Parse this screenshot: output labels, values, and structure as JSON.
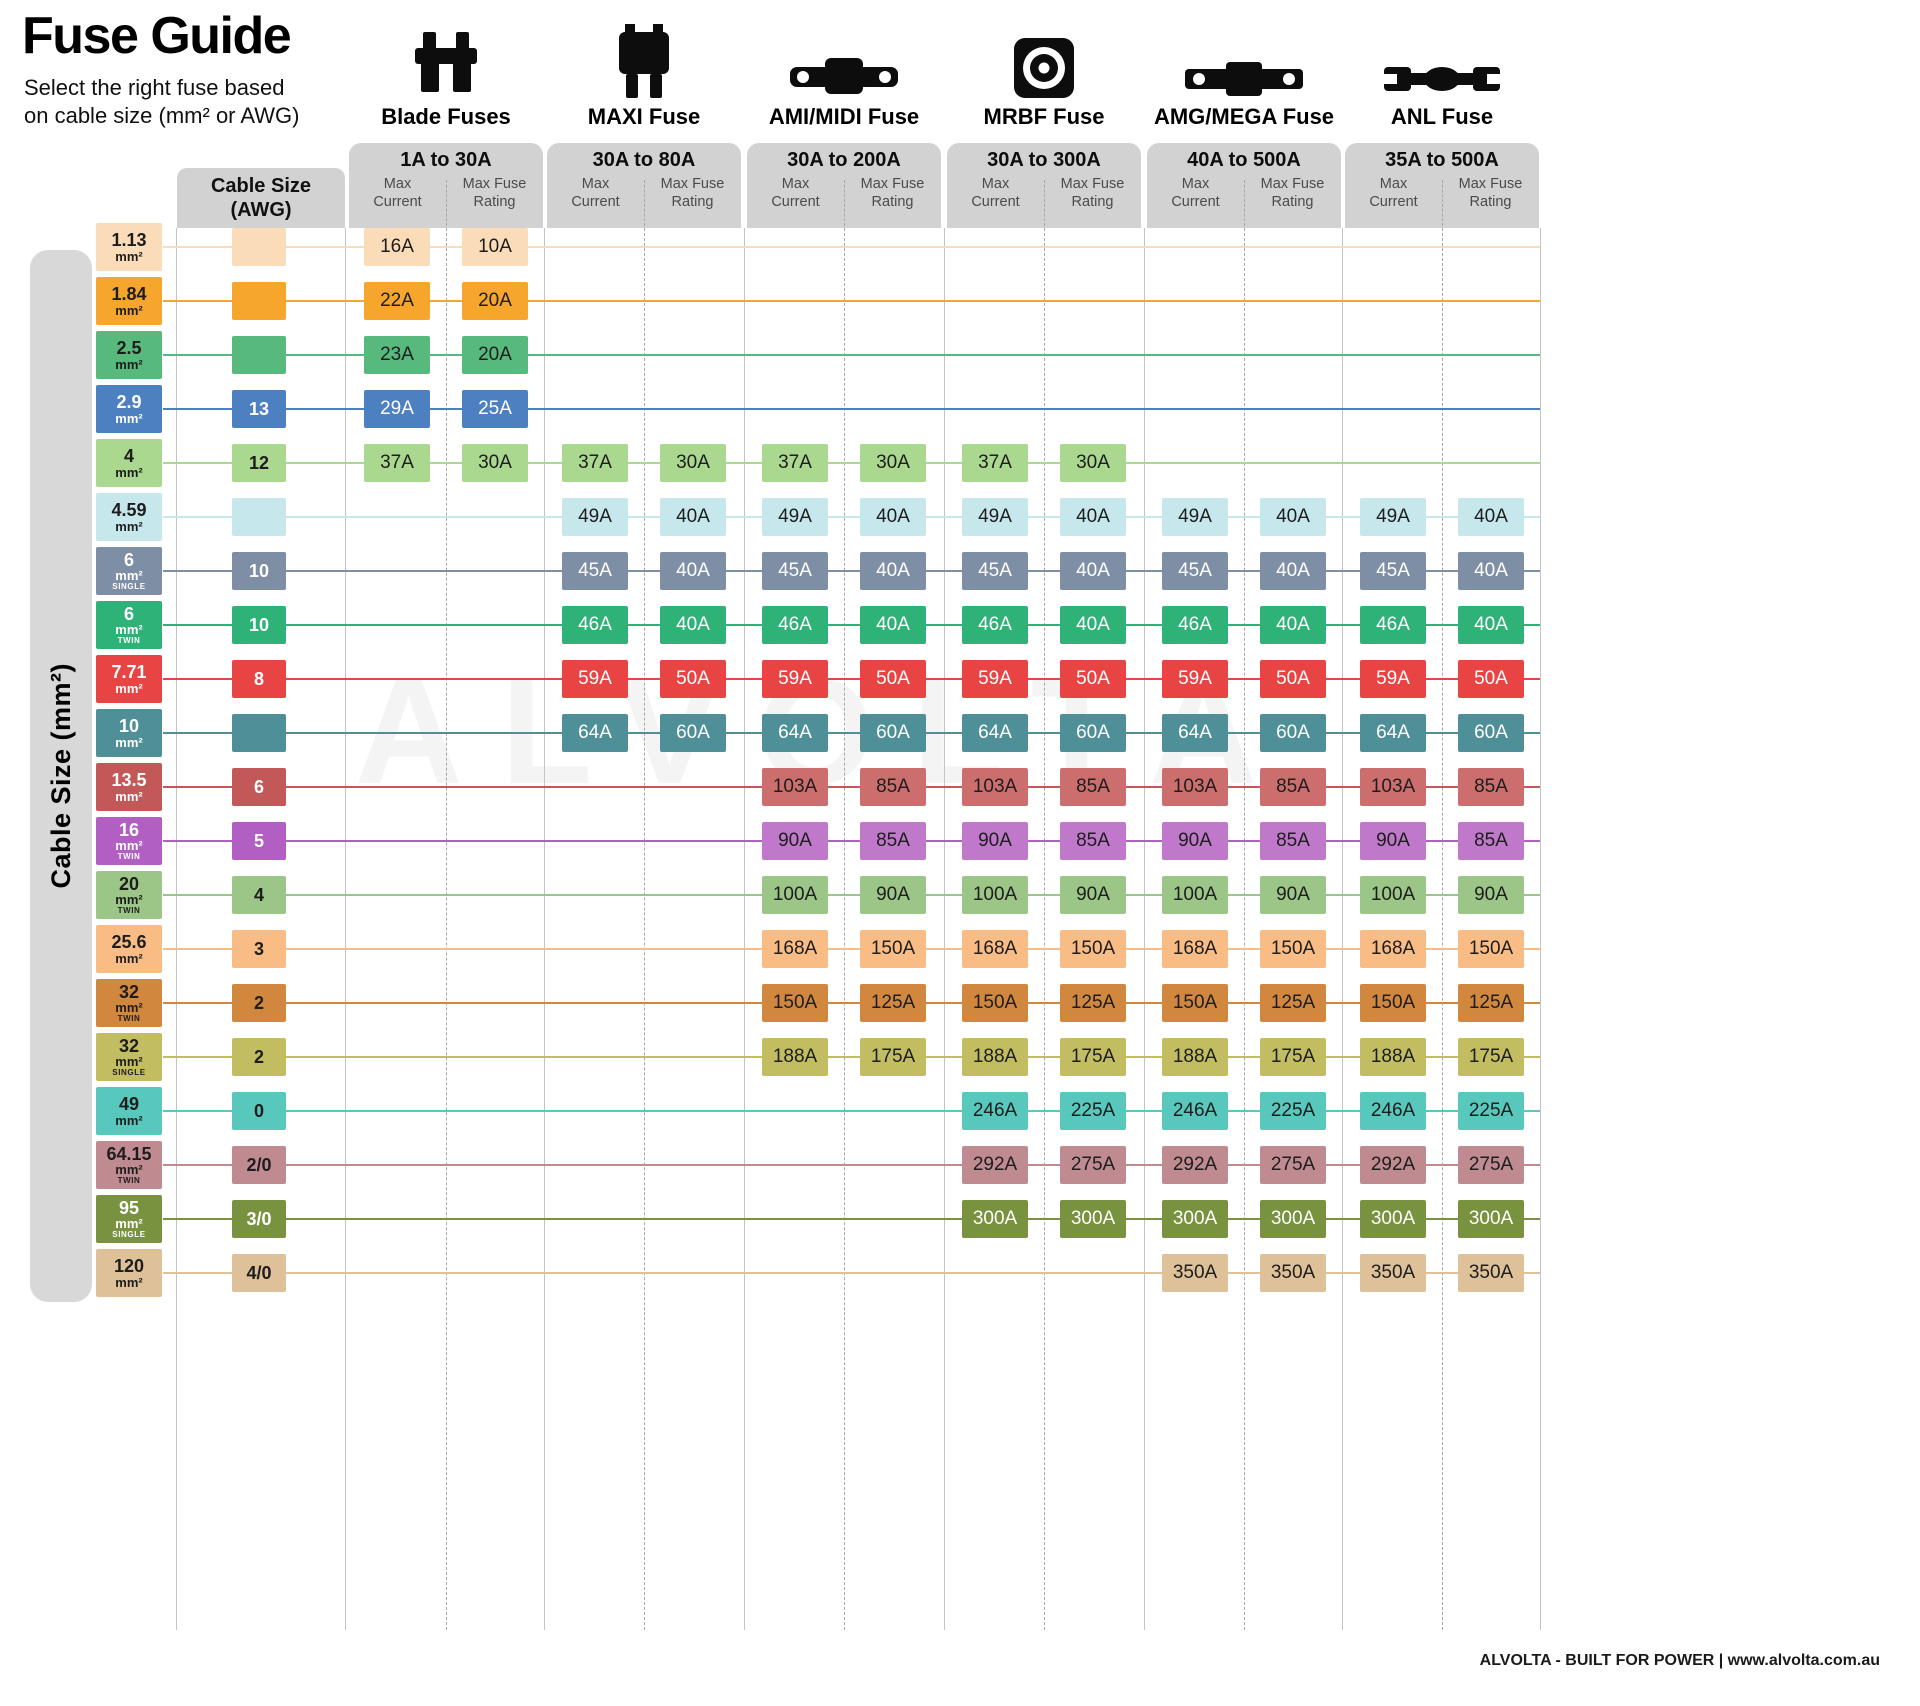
{
  "title": "Fuse Guide",
  "subtitle": [
    "Select the right fuse based",
    "on cable size (mm² or AWG)"
  ],
  "left_axis_label": "Cable Size (mm²)",
  "awg_header": [
    "Cable Size",
    "(AWG)"
  ],
  "watermark": "ALVOLTA",
  "footer": "ALVOLTA - BUILT FOR POWER | www.alvolta.com.au",
  "chart_data": {
    "type": "table",
    "unit": "mm²",
    "sub_columns": [
      "Max Current",
      "Max Fuse Rating"
    ],
    "fuse_types": [
      {
        "name": "Blade Fuses",
        "range": "1A to 30A",
        "icon": "blade-fuse-icon"
      },
      {
        "name": "MAXI Fuse",
        "range": "30A to 80A",
        "icon": "maxi-fuse-icon"
      },
      {
        "name": "AMI/MIDI Fuse",
        "range": "30A to 200A",
        "icon": "ami-midi-fuse-icon"
      },
      {
        "name": "MRBF Fuse",
        "range": "30A to 300A",
        "icon": "mrbf-fuse-icon"
      },
      {
        "name": "AMG/MEGA Fuse",
        "range": "40A to 500A",
        "icon": "amg-mega-fuse-icon"
      },
      {
        "name": "ANL Fuse",
        "range": "35A to 500A",
        "icon": "anl-fuse-icon"
      }
    ],
    "rows": [
      {
        "mm2": "1.13",
        "variant": "",
        "awg": "",
        "bg": "#fbdcb9",
        "fg": "#1d1d1d",
        "values": [
          [
            "16A",
            "10A"
          ],
          null,
          null,
          null,
          null,
          null
        ]
      },
      {
        "mm2": "1.84",
        "variant": "",
        "awg": "",
        "bg": "#f6a62d",
        "fg": "#1d1d1d",
        "values": [
          [
            "22A",
            "20A"
          ],
          null,
          null,
          null,
          null,
          null
        ]
      },
      {
        "mm2": "2.5",
        "variant": "",
        "awg": "",
        "bg": "#57b97c",
        "fg": "#1d1d1d",
        "values": [
          [
            "23A",
            "20A"
          ],
          null,
          null,
          null,
          null,
          null
        ]
      },
      {
        "mm2": "2.9",
        "variant": "",
        "awg": "13",
        "bg": "#4c80c0",
        "fg": "#ffffff",
        "values": [
          [
            "29A",
            "25A"
          ],
          null,
          null,
          null,
          null,
          null
        ]
      },
      {
        "mm2": "4",
        "variant": "",
        "awg": "12",
        "bg": "#a9d88e",
        "fg": "#1d1d1d",
        "values": [
          [
            "37A",
            "30A"
          ],
          [
            "37A",
            "30A"
          ],
          [
            "37A",
            "30A"
          ],
          [
            "37A",
            "30A"
          ],
          null,
          null
        ]
      },
      {
        "mm2": "4.59",
        "variant": "",
        "awg": "",
        "bg": "#c6e8ed",
        "fg": "#1d1d1d",
        "values": [
          null,
          [
            "49A",
            "40A"
          ],
          [
            "49A",
            "40A"
          ],
          [
            "49A",
            "40A"
          ],
          [
            "49A",
            "40A"
          ],
          [
            "49A",
            "40A"
          ]
        ]
      },
      {
        "mm2": "6",
        "variant": "SINGLE",
        "awg": "10",
        "bg": "#7e8ea4",
        "fg": "#ffffff",
        "values": [
          null,
          [
            "45A",
            "40A"
          ],
          [
            "45A",
            "40A"
          ],
          [
            "45A",
            "40A"
          ],
          [
            "45A",
            "40A"
          ],
          [
            "45A",
            "40A"
          ]
        ]
      },
      {
        "mm2": "6",
        "variant": "TWIN",
        "awg": "10",
        "bg": "#2fb278",
        "fg": "#ffffff",
        "values": [
          null,
          [
            "46A",
            "40A"
          ],
          [
            "46A",
            "40A"
          ],
          [
            "46A",
            "40A"
          ],
          [
            "46A",
            "40A"
          ],
          [
            "46A",
            "40A"
          ]
        ]
      },
      {
        "mm2": "7.71",
        "variant": "",
        "awg": "8",
        "bg": "#e84444",
        "fg": "#ffffff",
        "values": [
          null,
          [
            "59A",
            "50A"
          ],
          [
            "59A",
            "50A"
          ],
          [
            "59A",
            "50A"
          ],
          [
            "59A",
            "50A"
          ],
          [
            "59A",
            "50A"
          ]
        ]
      },
      {
        "mm2": "10",
        "variant": "",
        "awg": "",
        "bg": "#4f8f97",
        "fg": "#ffffff",
        "values": [
          null,
          [
            "64A",
            "60A"
          ],
          [
            "64A",
            "60A"
          ],
          [
            "64A",
            "60A"
          ],
          [
            "64A",
            "60A"
          ],
          [
            "64A",
            "60A"
          ]
        ]
      },
      {
        "mm2": "13.5",
        "variant": "",
        "awg": "6",
        "bg": "#c25858",
        "fg": "#ffffff",
        "cbg": "#cd6e6e",
        "cfg": "#1d1d1d",
        "values": [
          null,
          null,
          [
            "103A",
            "85A"
          ],
          [
            "103A",
            "85A"
          ],
          [
            "103A",
            "85A"
          ],
          [
            "103A",
            "85A"
          ]
        ]
      },
      {
        "mm2": "16",
        "variant": "TWIN",
        "awg": "5",
        "bg": "#b25fc4",
        "fg": "#ffffff",
        "cbg": "#c078cb",
        "cfg": "#1d1d1d",
        "values": [
          null,
          null,
          [
            "90A",
            "85A"
          ],
          [
            "90A",
            "85A"
          ],
          [
            "90A",
            "85A"
          ],
          [
            "90A",
            "85A"
          ]
        ]
      },
      {
        "mm2": "20",
        "variant": "TWIN",
        "awg": "4",
        "bg": "#9cc687",
        "fg": "#1d1d1d",
        "values": [
          null,
          null,
          [
            "100A",
            "90A"
          ],
          [
            "100A",
            "90A"
          ],
          [
            "100A",
            "90A"
          ],
          [
            "100A",
            "90A"
          ]
        ]
      },
      {
        "mm2": "25.6",
        "variant": "",
        "awg": "3",
        "bg": "#f9bc85",
        "fg": "#1d1d1d",
        "values": [
          null,
          null,
          [
            "168A",
            "150A"
          ],
          [
            "168A",
            "150A"
          ],
          [
            "168A",
            "150A"
          ],
          [
            "168A",
            "150A"
          ]
        ]
      },
      {
        "mm2": "32",
        "variant": "TWIN",
        "awg": "2",
        "bg": "#d2873f",
        "fg": "#1d1d1d",
        "values": [
          null,
          null,
          [
            "150A",
            "125A"
          ],
          [
            "150A",
            "125A"
          ],
          [
            "150A",
            "125A"
          ],
          [
            "150A",
            "125A"
          ]
        ]
      },
      {
        "mm2": "32",
        "variant": "SINGLE",
        "awg": "2",
        "bg": "#c3bd62",
        "fg": "#1d1d1d",
        "values": [
          null,
          null,
          [
            "188A",
            "175A"
          ],
          [
            "188A",
            "175A"
          ],
          [
            "188A",
            "175A"
          ],
          [
            "188A",
            "175A"
          ]
        ]
      },
      {
        "mm2": "49",
        "variant": "",
        "awg": "0",
        "bg": "#58c8bd",
        "fg": "#1d1d1d",
        "values": [
          null,
          null,
          null,
          [
            "246A",
            "225A"
          ],
          [
            "246A",
            "225A"
          ],
          [
            "246A",
            "225A"
          ]
        ]
      },
      {
        "mm2": "64.15",
        "variant": "TWIN",
        "awg": "2/0",
        "bg": "#bf8b90",
        "fg": "#1d1d1d",
        "values": [
          null,
          null,
          null,
          [
            "292A",
            "275A"
          ],
          [
            "292A",
            "275A"
          ],
          [
            "292A",
            "275A"
          ]
        ]
      },
      {
        "mm2": "95",
        "variant": "SINGLE",
        "awg": "3/0",
        "bg": "#78923f",
        "fg": "#ffffff",
        "values": [
          null,
          null,
          null,
          [
            "300A",
            "300A"
          ],
          [
            "300A",
            "300A"
          ],
          [
            "300A",
            "300A"
          ]
        ]
      },
      {
        "mm2": "120",
        "variant": "",
        "awg": "4/0",
        "bg": "#dec198",
        "fg": "#1d1d1d",
        "values": [
          null,
          null,
          null,
          null,
          [
            "350A",
            "350A"
          ],
          [
            "350A",
            "350A"
          ]
        ]
      }
    ]
  }
}
